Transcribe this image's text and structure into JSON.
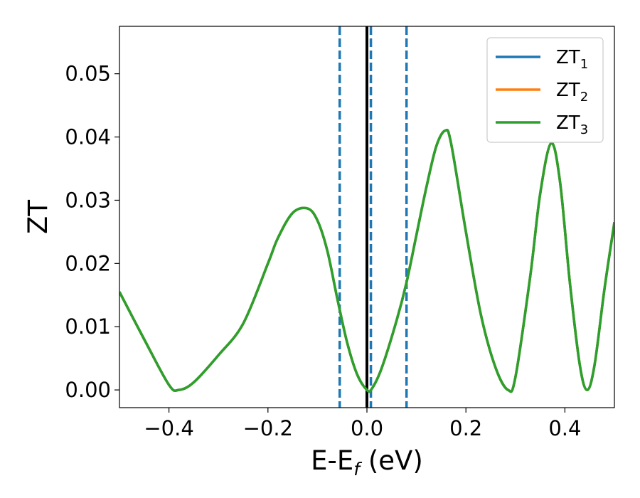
{
  "chart_data": {
    "type": "line",
    "xlabel": "E-E",
    "xlabel_sub": "f",
    "xlabel_unit": " (eV)",
    "ylabel": "ZT",
    "xlim": [
      -0.5,
      0.5
    ],
    "ylim": [
      -0.0028,
      0.0575
    ],
    "x_ticks": [
      -0.4,
      -0.2,
      0.0,
      0.2,
      0.4
    ],
    "x_tick_labels": [
      "−0.4",
      "−0.2",
      "0.0",
      "0.2",
      "0.4"
    ],
    "y_ticks": [
      0.0,
      0.01,
      0.02,
      0.03,
      0.04,
      0.05
    ],
    "y_tick_labels": [
      "0.00",
      "0.01",
      "0.02",
      "0.03",
      "0.04",
      "0.05"
    ],
    "grid": false,
    "legend_position": "top-right",
    "vertical_lines": [
      {
        "x": 0.0,
        "style": "solid",
        "color": "#000000"
      },
      {
        "x": -0.055,
        "style": "dashed",
        "color": "#1f77b4"
      },
      {
        "x": 0.008,
        "style": "dashed",
        "color": "#1f77b4"
      },
      {
        "x": 0.08,
        "style": "dashed",
        "color": "#1f77b4"
      }
    ],
    "x": [
      -0.5,
      -0.45,
      -0.4,
      -0.38,
      -0.35,
      -0.3,
      -0.25,
      -0.2,
      -0.18,
      -0.15,
      -0.12,
      -0.1,
      -0.08,
      -0.06,
      -0.04,
      -0.02,
      0.0,
      0.01,
      0.03,
      0.06,
      0.08,
      0.1,
      0.12,
      0.14,
      0.158,
      0.17,
      0.2,
      0.23,
      0.26,
      0.285,
      0.3,
      0.33,
      0.35,
      0.372,
      0.39,
      0.41,
      0.43,
      0.445,
      0.46,
      0.48,
      0.5
    ],
    "series": [
      {
        "name": "ZT",
        "name_sub": "1",
        "color": "#1f77b4",
        "values": [
          0.0155,
          0.008,
          0.0008,
          0.0,
          0.0012,
          0.0055,
          0.0105,
          0.02,
          0.024,
          0.028,
          0.0287,
          0.0268,
          0.022,
          0.0145,
          0.0075,
          0.0025,
          0.0,
          0.0002,
          0.0035,
          0.011,
          0.017,
          0.0245,
          0.032,
          0.0385,
          0.041,
          0.039,
          0.025,
          0.012,
          0.0035,
          0.0,
          0.002,
          0.018,
          0.031,
          0.039,
          0.033,
          0.017,
          0.004,
          0.0,
          0.004,
          0.016,
          0.0265
        ]
      },
      {
        "name": "ZT",
        "name_sub": "2",
        "color": "#ff7f0e",
        "values": [
          0.0155,
          0.008,
          0.0008,
          0.0,
          0.0012,
          0.0055,
          0.0105,
          0.02,
          0.024,
          0.028,
          0.0287,
          0.0268,
          0.022,
          0.0145,
          0.0075,
          0.0025,
          0.0,
          0.0002,
          0.0035,
          0.011,
          0.017,
          0.0245,
          0.032,
          0.0385,
          0.041,
          0.039,
          0.025,
          0.012,
          0.0035,
          0.0,
          0.002,
          0.018,
          0.031,
          0.039,
          0.033,
          0.017,
          0.004,
          0.0,
          0.004,
          0.016,
          0.0265
        ]
      },
      {
        "name": "ZT",
        "name_sub": "3",
        "color": "#2ca02c",
        "values": [
          0.0155,
          0.008,
          0.0008,
          0.0,
          0.0012,
          0.0055,
          0.0105,
          0.02,
          0.024,
          0.028,
          0.0287,
          0.0268,
          0.022,
          0.0145,
          0.0075,
          0.0025,
          0.0,
          0.0002,
          0.0035,
          0.011,
          0.017,
          0.0245,
          0.032,
          0.0385,
          0.041,
          0.039,
          0.025,
          0.012,
          0.0035,
          0.0,
          0.002,
          0.018,
          0.031,
          0.039,
          0.033,
          0.017,
          0.004,
          0.0,
          0.004,
          0.016,
          0.0265
        ]
      }
    ]
  }
}
